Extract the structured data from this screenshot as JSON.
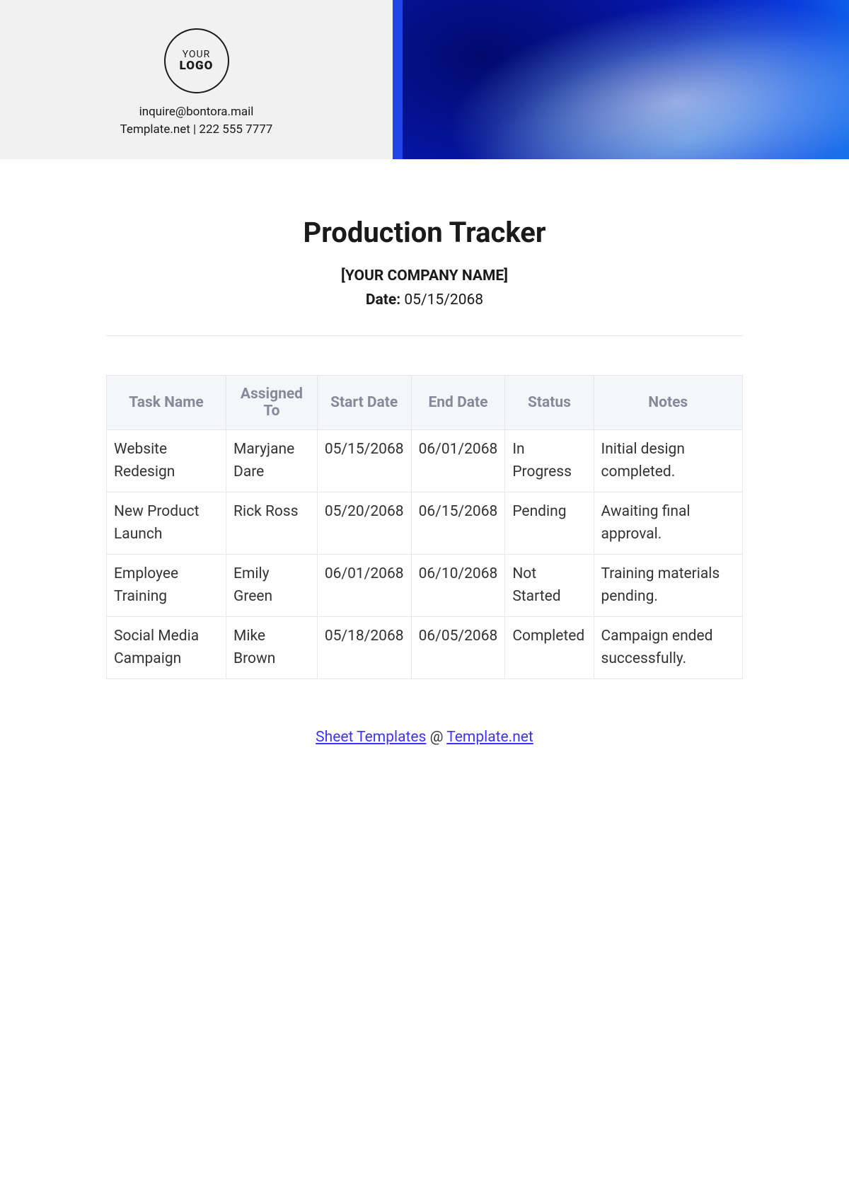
{
  "header": {
    "logo_top": "YOUR",
    "logo_bottom": "LOGO",
    "contact_email": "inquire@bontora.mail",
    "contact_info": "Template.net | 222 555 7777",
    "accent_color": "#2146e8",
    "gradient_colors": [
      "#020a6e",
      "#0616a8",
      "#0b3bdd",
      "#1176f0",
      "#17b4ff",
      "#6de0ff"
    ],
    "header_bg": "#f1f1f1"
  },
  "main": {
    "title": "Production Tracker",
    "company_placeholder": "[YOUR COMPANY NAME]",
    "date_label": "Date:",
    "date_value": "05/15/2068"
  },
  "table": {
    "type": "table",
    "header_bg": "#f5f6fa",
    "header_text_color": "#868a98",
    "border_color": "#e7e7e9",
    "cell_text_color": "#333333",
    "header_fontsize": 21,
    "cell_fontsize": 21,
    "columns": [
      "Task Name",
      "Assigned To",
      "Start Date",
      "End Date",
      "Status",
      "Notes"
    ],
    "rows": [
      [
        "Website Redesign",
        "Maryjane Dare",
        "05/15/2068",
        "06/01/2068",
        "In Progress",
        "Initial design completed."
      ],
      [
        "New Product Launch",
        "Rick Ross",
        "05/20/2068",
        "06/15/2068",
        "Pending",
        "Awaiting final approval."
      ],
      [
        "Employee Training",
        "Emily Green",
        "06/01/2068",
        "06/10/2068",
        "Not Started",
        "Training materials pending."
      ],
      [
        "Social Media Campaign",
        "Mike Brown",
        "05/18/2068",
        "06/05/2068",
        "Completed",
        "Campaign ended successfully."
      ]
    ]
  },
  "footer": {
    "link1_text": "Sheet Templates",
    "separator": " @ ",
    "link2_text": "Template.net",
    "link_color": "#3d33ff"
  }
}
